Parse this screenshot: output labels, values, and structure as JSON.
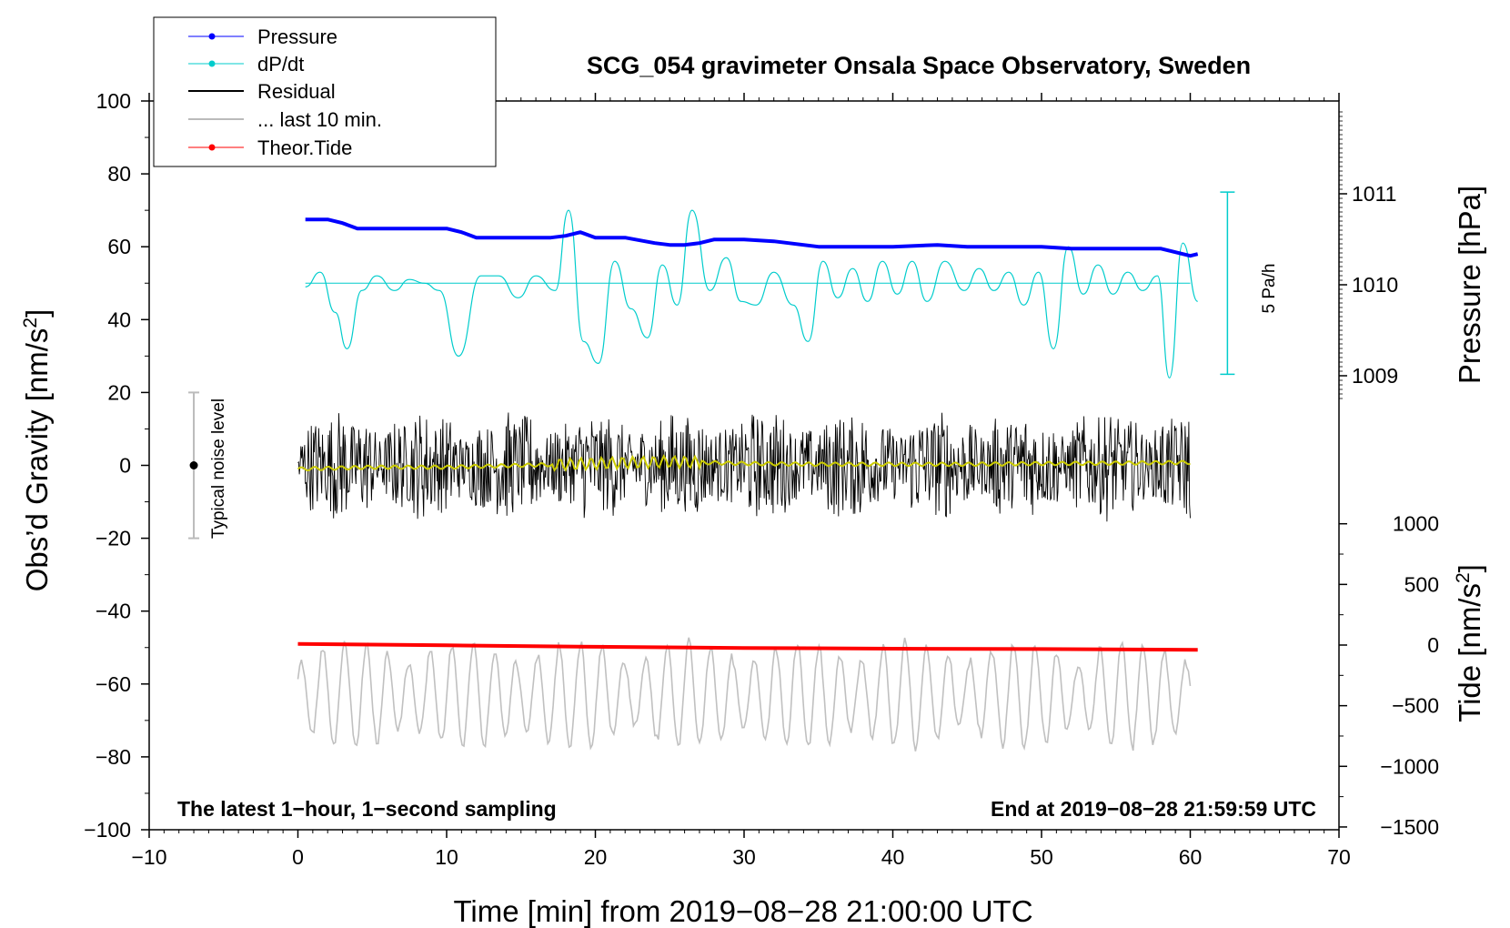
{
  "chart_data": {
    "type": "line",
    "title": "SCG_054 gravimeter Onsala Space Observatory, Sweden",
    "xlabel": "Time [min] from 2019−08−28 21:00:00 UTC",
    "ylabel_main": "Obs’d Gravity [nm/s",
    "ylabel_main_sup": "2",
    "ylabel_main_close": "]",
    "ylabel_pressure": "Pressure [hPa]",
    "ylabel_tide": "Tide [nm/s",
    "ylabel_tide_sup": "2",
    "ylabel_tide_close": "]",
    "xlim": [
      -10,
      70
    ],
    "ylim": [
      -100,
      100
    ],
    "x_ticks": [
      -10,
      0,
      10,
      20,
      30,
      40,
      50,
      60,
      70
    ],
    "x_tick_labels": [
      "−10",
      "0",
      "10",
      "20",
      "30",
      "40",
      "50",
      "60",
      "70"
    ],
    "y_ticks": [
      -100,
      -80,
      -60,
      -40,
      -20,
      0,
      20,
      40,
      60,
      80,
      100
    ],
    "y_tick_labels": [
      "−100",
      "−80",
      "−60",
      "−40",
      "−20",
      "0",
      "20",
      "40",
      "60",
      "80",
      "100"
    ],
    "pressure_ticks": [
      1009,
      1010,
      1011
    ],
    "pressure_tick_labels": [
      "1009",
      "1010",
      "1011"
    ],
    "tide_ticks": [
      -1500,
      -1000,
      -500,
      0,
      500,
      1000
    ],
    "tide_tick_labels": [
      "−1500",
      "−1000",
      "−500",
      "0",
      "500",
      "1000"
    ],
    "note_left": "The latest 1−hour, 1−second sampling",
    "note_right": "End at 2019−08−28 21:59:59 UTC",
    "noise_label": "Typical noise level",
    "noise_bar": {
      "x": -7,
      "center": 0,
      "low": -20,
      "high": 20
    },
    "scale_bar_label": "5 Pa/h",
    "scale_bar": {
      "x": 62.5,
      "low": 25,
      "high": 75,
      "zero": 50
    },
    "legend": [
      {
        "label": "Pressure",
        "color": "#0000ff",
        "marker": true
      },
      {
        "label": "dP/dt",
        "color": "#00cccc",
        "marker": true
      },
      {
        "label": "Residual",
        "color": "#000000",
        "marker": false
      },
      {
        "label": "... last 10 min.",
        "color": "#bbbbbb",
        "marker": false
      },
      {
        "label": "Theor.Tide",
        "color": "#ff0000",
        "marker": true
      }
    ],
    "series": [
      {
        "name": "Pressure",
        "color": "#0000ff",
        "unit": "display nm/s2",
        "x": [
          0.5,
          1,
          2,
          3,
          4,
          5,
          7,
          9,
          10,
          11,
          12,
          14,
          16,
          17,
          18,
          19,
          20,
          22,
          24,
          25,
          26,
          27,
          28,
          30,
          32,
          33,
          35,
          37,
          40,
          43,
          45,
          48,
          50,
          52,
          55,
          57,
          58,
          59,
          60,
          60.5
        ],
        "y": [
          67.5,
          67.5,
          67.5,
          66.5,
          65,
          65,
          65,
          65,
          65,
          64,
          62.5,
          62.5,
          62.5,
          62.5,
          63,
          64,
          62.5,
          62.5,
          61,
          60.5,
          60.5,
          61,
          62,
          62,
          61.5,
          61,
          60,
          60,
          60,
          60.5,
          60,
          60,
          60,
          59.5,
          59.5,
          59.5,
          59.5,
          58.5,
          57.5,
          58
        ]
      },
      {
        "name": "dP/dt",
        "color": "#00cccc",
        "unit": "display nm/s2",
        "x": [
          0.5,
          1.5,
          2.5,
          3.3,
          4.3,
          5.3,
          6.5,
          7.5,
          8.5,
          9.5,
          10.8,
          12.3,
          13.5,
          14.8,
          16,
          17.3,
          18.2,
          19.2,
          20.2,
          21.3,
          22.4,
          23.5,
          24.5,
          25.5,
          26.5,
          27.7,
          28.8,
          29.8,
          30.8,
          32,
          33.3,
          34.3,
          35.3,
          36.3,
          37.3,
          38.3,
          39.3,
          40.3,
          41.3,
          42.3,
          43.5,
          44.8,
          45.8,
          46.8,
          47.8,
          48.8,
          49.8,
          50.8,
          51.8,
          52.8,
          53.8,
          54.8,
          55.8,
          56.8,
          57.8,
          58.6,
          59.5,
          60.5
        ],
        "y": [
          49,
          53,
          42,
          32,
          48,
          52,
          48,
          51,
          50,
          48,
          30,
          52,
          52,
          46,
          52,
          48,
          70,
          34,
          28,
          56,
          43,
          35,
          55,
          44,
          70,
          48,
          57,
          45,
          44,
          53,
          44,
          34,
          56,
          46,
          54,
          45,
          56,
          47,
          56,
          45,
          56,
          48,
          54,
          48,
          53,
          44,
          53,
          32,
          60,
          47,
          55,
          47,
          53,
          48,
          52,
          24,
          61,
          45
        ]
      },
      {
        "name": "Residual",
        "color": "#000000",
        "unit": "nm/s2",
        "x_range": [
          0,
          60
        ],
        "y_range": [
          -18,
          21
        ],
        "sampling_min": 0.05
      },
      {
        "name": "... last 10 min.",
        "color": "#bbbbbb",
        "unit": "display nm/s2",
        "x_range": [
          0,
          60
        ],
        "y_range": [
          -79,
          -42
        ],
        "center": -63
      },
      {
        "name": "Theor.Tide",
        "color": "#ff0000",
        "unit": "display nm/s2",
        "x": [
          0,
          10,
          20,
          30,
          40,
          50,
          60.5
        ],
        "y": [
          -49,
          -49.4,
          -49.8,
          -50.1,
          -50.3,
          -50.4,
          -50.6
        ]
      },
      {
        "name": "Residual smoothed",
        "color": "#cccc00",
        "unit": "nm/s2",
        "x": [
          0,
          5,
          10,
          15,
          20,
          25,
          30,
          35,
          40,
          45,
          50,
          55,
          60
        ],
        "y": [
          -1,
          -0.5,
          -0.5,
          0,
          0.5,
          1,
          0.5,
          0.3,
          0.3,
          0.3,
          0.5,
          0.6,
          0.8
        ]
      }
    ]
  }
}
